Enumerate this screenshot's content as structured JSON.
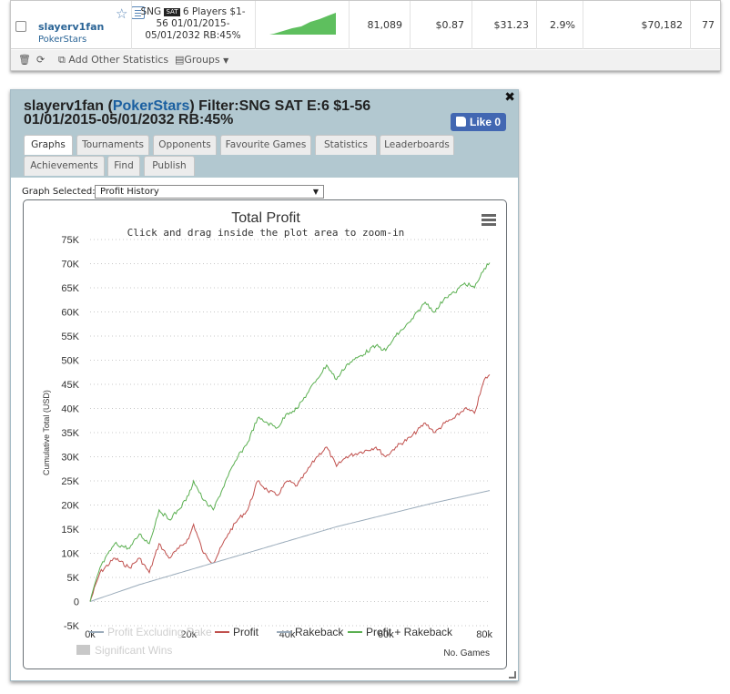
{
  "top_row": {
    "player_name": "slayerv1fan",
    "site": "PokerStars",
    "filter_prefix": "SNG",
    "filter_badge": "SAT",
    "filter_line1_rest": "6 Players $1-",
    "filter_line2": "56 01/01/2015-",
    "filter_line3": "05/01/2032 RB:45%",
    "games": "81,089",
    "avg_profit": "$0.87",
    "avg_stake": "$31.23",
    "roi": "2.9%",
    "total_profit": "$70,182",
    "last_col": "77"
  },
  "toolbar": {
    "add_stats": "Add Other Statistics",
    "groups": "Groups"
  },
  "popup": {
    "title_name": "slayerv1fan (",
    "title_site": "PokerStars",
    "title_rest": ") Filter:SNG SAT E:6 $1-56 01/01/2015-05/01/2032 RB:45%",
    "like_label": "Like 0",
    "tabs_row1": [
      "Graphs",
      "Tournaments",
      "Opponents",
      "Favourite Games",
      "Statistics",
      "Leaderboards"
    ],
    "tabs_row2": [
      "Achievements",
      "Find",
      "Publish"
    ],
    "graph_selected_label": "Graph Selected:",
    "graph_selected_value": "Profit History"
  },
  "chart_data": {
    "type": "line",
    "title": "Total Profit",
    "subtitle": "Click and drag inside the plot area to zoom-in",
    "xlabel": "No. Games",
    "ylabel": "Cumulative Total (USD)",
    "xlim": [
      0,
      81089
    ],
    "ylim": [
      -5000,
      75000
    ],
    "x_ticks": [
      "0k",
      "20k",
      "40k",
      "60k",
      "80k"
    ],
    "y_ticks": [
      "-5K",
      "0",
      "5K",
      "10K",
      "15K",
      "20K",
      "25K",
      "30K",
      "35K",
      "40K",
      "45K",
      "50K",
      "55K",
      "60K",
      "65K",
      "70K",
      "75K"
    ],
    "grid": "horizontal",
    "legend_position": "bottom",
    "legend": [
      "Profit Excluding Rake",
      "Profit",
      "Rakeback",
      "Profit + Rakeback",
      "Significant Wins"
    ],
    "series": [
      {
        "name": "Profit",
        "color": "#c0504d",
        "x": [
          0,
          2000,
          5000,
          8000,
          10000,
          12000,
          14000,
          16000,
          18000,
          20000,
          21000,
          23000,
          25000,
          28000,
          30000,
          32000,
          34000,
          36000,
          38000,
          40000,
          42000,
          44000,
          46000,
          48000,
          50000,
          52000,
          55000,
          58000,
          60000,
          62000,
          65000,
          68000,
          70000,
          72000,
          74000,
          76000,
          78000,
          80000,
          81089
        ],
        "values": [
          0,
          6000,
          9000,
          7000,
          9000,
          6000,
          12000,
          9000,
          11000,
          13000,
          16000,
          10000,
          8000,
          14000,
          17000,
          19000,
          25000,
          23000,
          22000,
          25000,
          24000,
          27000,
          30000,
          32000,
          28000,
          30000,
          31000,
          32000,
          30000,
          32000,
          34000,
          37000,
          35000,
          37000,
          38000,
          40000,
          39000,
          46000,
          47000
        ]
      },
      {
        "name": "Rakeback",
        "color": "#9aabba",
        "x": [
          0,
          10000,
          20000,
          30000,
          40000,
          50000,
          60000,
          70000,
          81089
        ],
        "values": [
          0,
          3500,
          6500,
          9500,
          12500,
          15500,
          18000,
          20500,
          23000
        ]
      },
      {
        "name": "Profit + Rakeback",
        "color": "#5aaf50",
        "x": [
          0,
          2000,
          5000,
          8000,
          10000,
          12000,
          14000,
          16000,
          18000,
          20000,
          21000,
          23000,
          25000,
          28000,
          30000,
          32000,
          34000,
          36000,
          38000,
          40000,
          42000,
          44000,
          46000,
          48000,
          50000,
          52000,
          55000,
          58000,
          60000,
          62000,
          65000,
          68000,
          70000,
          72000,
          74000,
          76000,
          78000,
          80000,
          81089
        ],
        "values": [
          0,
          7000,
          12000,
          11000,
          14000,
          12000,
          19000,
          17000,
          19000,
          22000,
          25000,
          21000,
          19000,
          26000,
          30000,
          33000,
          38000,
          37000,
          36000,
          39000,
          40000,
          43000,
          46000,
          49000,
          46000,
          49000,
          51000,
          53000,
          52000,
          55000,
          58000,
          62000,
          60000,
          63000,
          64000,
          66000,
          65000,
          69000,
          70182
        ]
      }
    ]
  },
  "legend_icons": {
    "significant_wins_color": "#c8c8c8"
  }
}
